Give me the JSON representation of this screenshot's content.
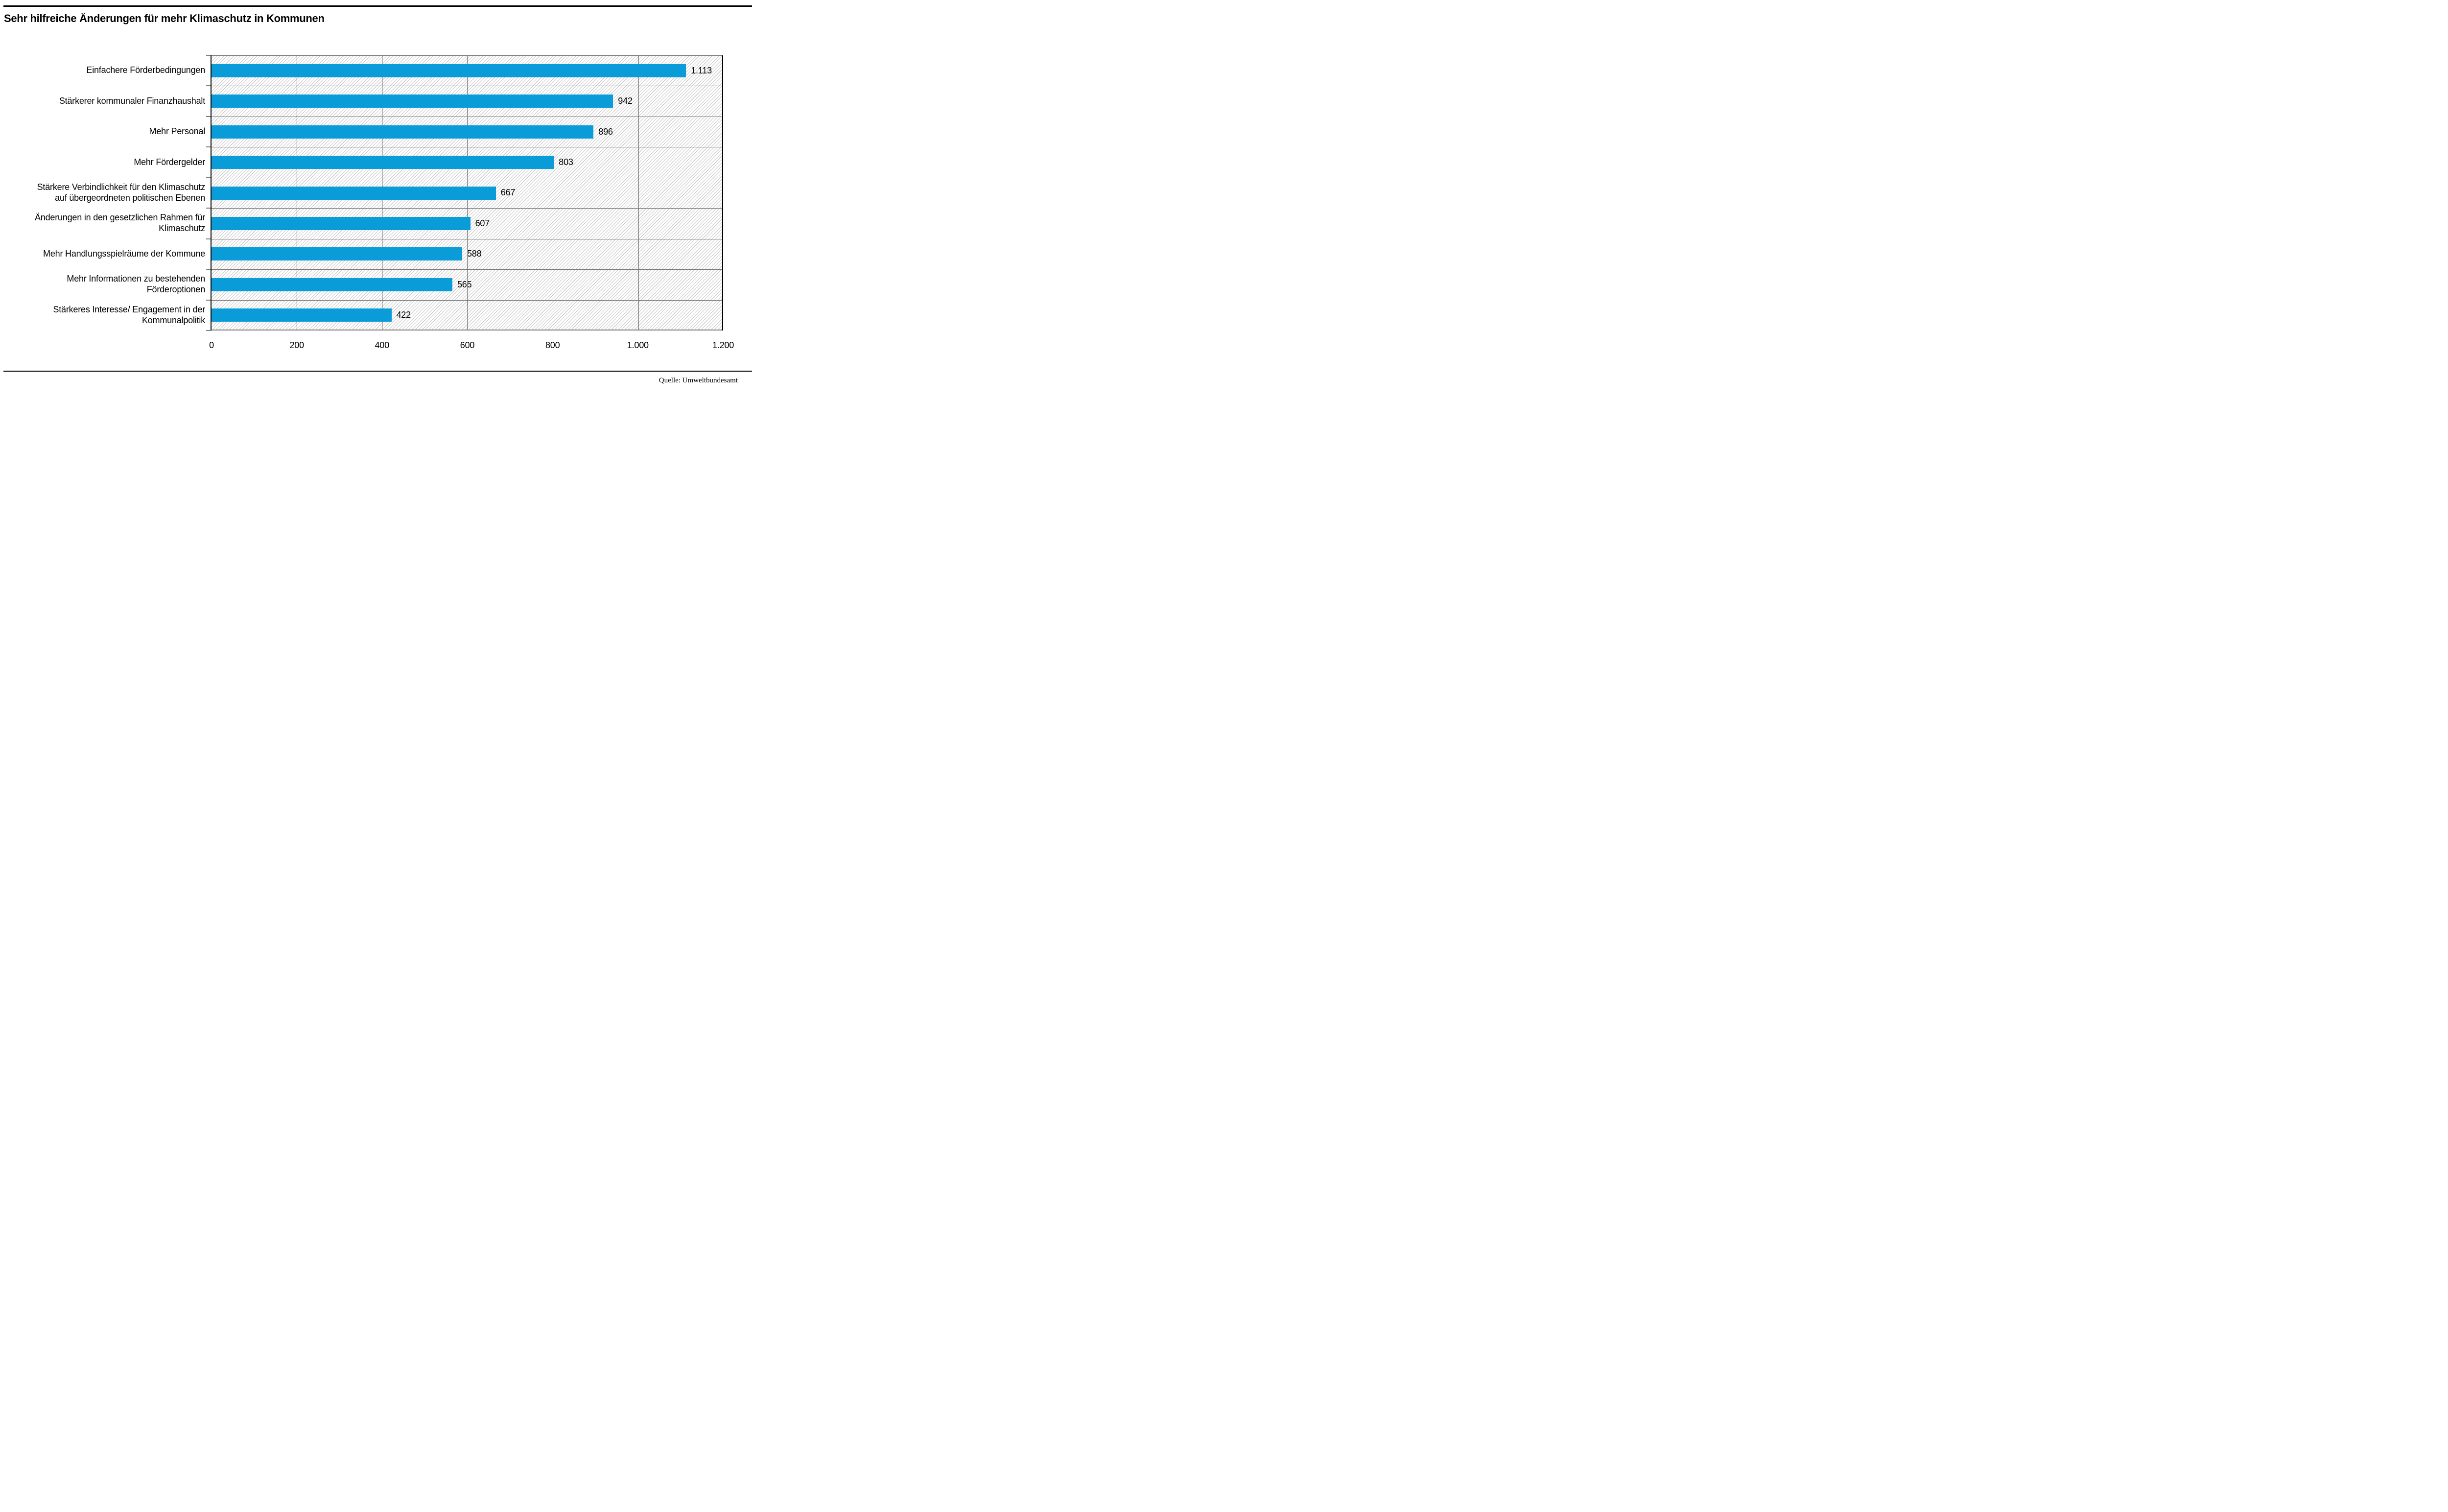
{
  "title": "Sehr hilfreiche Änderungen für mehr Klimaschutz in Kommunen",
  "source": "Quelle: Umweltbundesamt",
  "chart_data": {
    "type": "bar",
    "orientation": "horizontal",
    "title": "Sehr hilfreiche Änderungen für mehr Klimaschutz in Kommunen",
    "categories": [
      "Einfachere Förderbedingungen",
      "Stärkerer kommunaler Finanzhaushalt",
      "Mehr Personal",
      "Mehr Fördergelder",
      "Stärkere Verbindlichkeit für den Klimaschutz\nauf übergeordneten politischen Ebenen",
      "Änderungen in den gesetzlichen Rahmen für\nKlimaschutz",
      "Mehr Handlungsspielräume der Kommune",
      "Mehr Informationen zu bestehenden\nFörderoptionen",
      "Stärkeres Interesse/ Engagement in der\nKommunalpolitik"
    ],
    "values": [
      1113,
      942,
      896,
      803,
      667,
      607,
      588,
      565,
      422
    ],
    "value_labels": [
      "1.113",
      "942",
      "896",
      "803",
      "667",
      "607",
      "588",
      "565",
      "422"
    ],
    "xlabel": "",
    "ylabel": "",
    "xlim": [
      0,
      1200
    ],
    "xticks": [
      0,
      200,
      400,
      600,
      800,
      1000,
      1200
    ],
    "xtick_labels": [
      "0",
      "200",
      "400",
      "600",
      "800",
      "1.000",
      "1.200"
    ],
    "legend": "none",
    "grid": "vertical gridlines at x ticks; horizontal gray separators between category rows",
    "plot_background": "white with light gray diagonal hatch (///)",
    "colors": {
      "bar": "#0A9CD8",
      "gridline_vertical": "#000000",
      "row_separator": "#6f6f6f",
      "tick": "#808080",
      "hatch": "#c9c9c9",
      "text": "#000000"
    }
  }
}
